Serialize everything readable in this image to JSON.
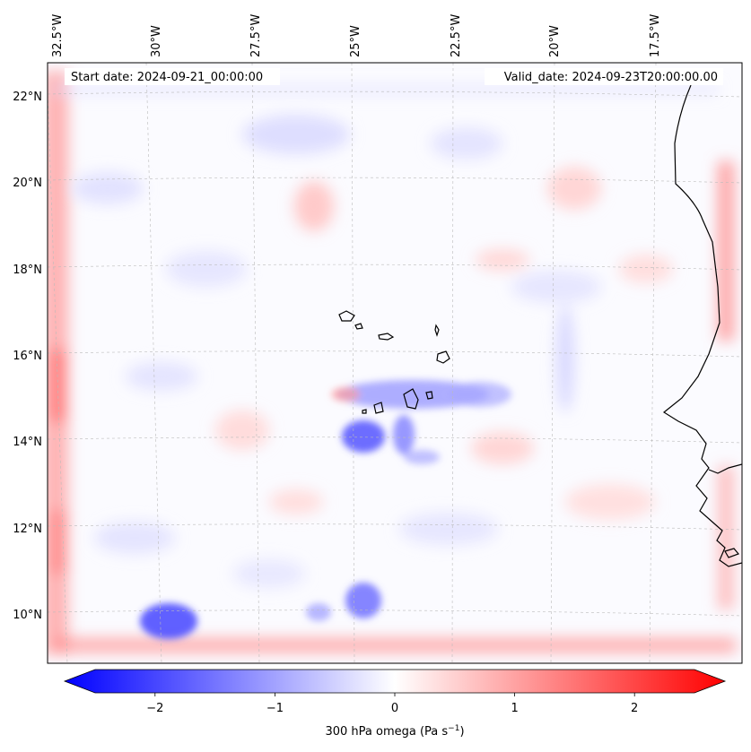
{
  "map": {
    "start_label": "Start date: 2024-09-21_00:00:00",
    "valid_label": "Valid_date: 2024-09-23T20:00:00.00",
    "lon_labels": [
      "32.5°W",
      "30°W",
      "27.5°W",
      "25°W",
      "22.5°W",
      "20°W",
      "17.5°W"
    ],
    "lat_labels": [
      "22°N",
      "20°N",
      "18°N",
      "16°N",
      "14°N",
      "12°N",
      "10°N"
    ]
  },
  "colorbar": {
    "tick_labels": [
      "−2",
      "−1",
      "0",
      "1",
      "2"
    ],
    "tick_values": [
      -2,
      -1,
      0,
      1,
      2
    ],
    "range": [
      -2.5,
      2.5
    ],
    "label_text": "300 hPa omega (Pa s",
    "label_exp": "−1",
    "label_close": ")",
    "colormap": "bwr",
    "color_low": "#0000ff",
    "color_mid": "#ffffff",
    "color_high": "#ff0000"
  }
}
